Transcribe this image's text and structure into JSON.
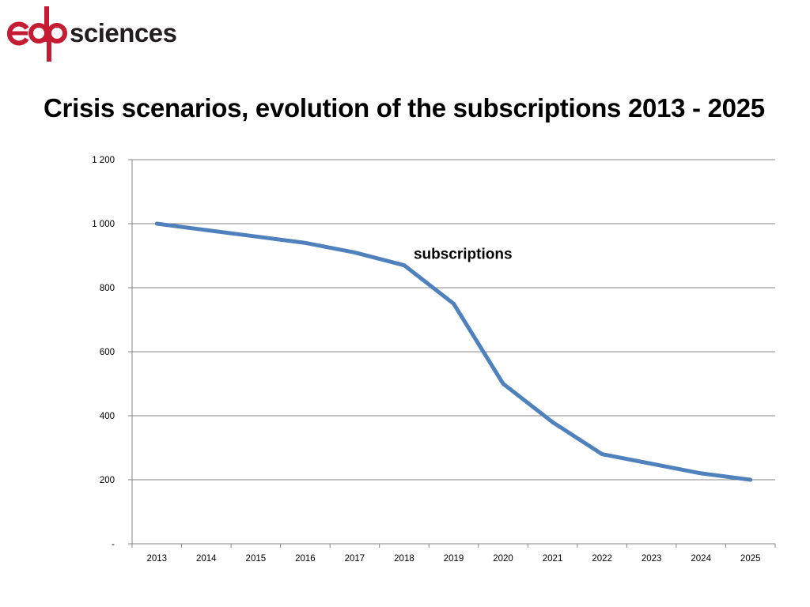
{
  "logo": {
    "brand": "edp",
    "word": "sciences",
    "color": "#c51b33",
    "word_color": "#231f20"
  },
  "chart_data": {
    "type": "line",
    "title": "Crisis scenarios, evolution of the subscriptions 2013 - 2025",
    "categories": [
      "2013",
      "2014",
      "2015",
      "2016",
      "2017",
      "2018",
      "2019",
      "2020",
      "2021",
      "2022",
      "2023",
      "2024",
      "2025"
    ],
    "series": [
      {
        "name": "subscriptions",
        "values": [
          1000,
          980,
          960,
          940,
          910,
          870,
          750,
          500,
          380,
          280,
          250,
          220,
          200
        ],
        "color": "#4f81bd"
      }
    ],
    "ylim": [
      0,
      1200
    ],
    "yticks": [
      0,
      200,
      400,
      600,
      800,
      1000,
      1200
    ],
    "ytick_labels": [
      "-",
      "200",
      "400",
      "600",
      "800",
      "1 000",
      "1 200"
    ],
    "grid": true,
    "xlabel": "",
    "ylabel": ""
  }
}
